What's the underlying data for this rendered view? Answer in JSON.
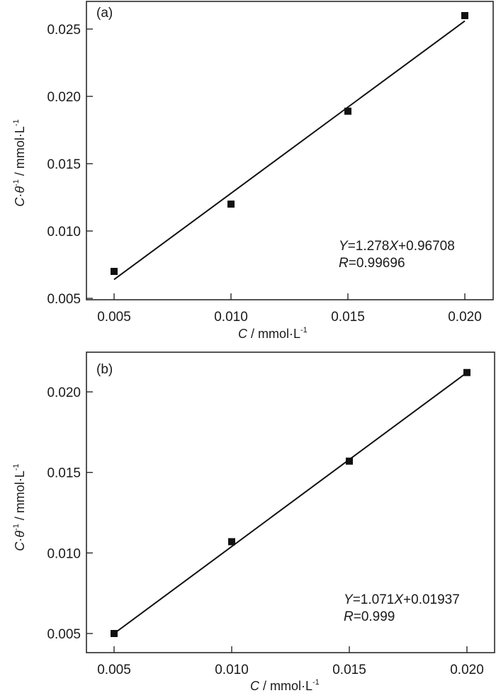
{
  "chart_data": [
    {
      "type": "scatter",
      "panel_label": "(a)",
      "title": "",
      "xlabel": "C / mmol·L⁻¹",
      "ylabel": "C·θ⁻¹ / mmol·L⁻¹",
      "x_ticks": [
        "0.005",
        "0.010",
        "0.015",
        "0.020"
      ],
      "y_ticks": [
        "0.005",
        "0.010",
        "0.015",
        "0.020",
        "0.025"
      ],
      "xlim": [
        0.0038,
        0.0212
      ],
      "ylim": [
        0.0049,
        0.0268
      ],
      "grid": false,
      "legend": null,
      "series": [
        {
          "name": "data",
          "marker": "square",
          "x": [
            0.005,
            0.01,
            0.015,
            0.02
          ],
          "y": [
            0.007,
            0.012,
            0.0189,
            0.026
          ]
        },
        {
          "name": "linear fit",
          "style": "line",
          "x": [
            0.005,
            0.02
          ],
          "y": [
            0.0064,
            0.0256
          ]
        }
      ],
      "annotations": {
        "equation": {
          "Y": "Y",
          "eq1": "=1.278",
          "X": "X",
          "eq2": "+0.96708"
        },
        "r": {
          "R": "R",
          "value": "=0.99696"
        }
      }
    },
    {
      "type": "scatter",
      "panel_label": "(b)",
      "title": "",
      "xlabel": "C / mmol·L⁻¹",
      "ylabel": "C·θ⁻¹ / mmol·L⁻¹",
      "x_ticks": [
        "0.005",
        "0.010",
        "0.015",
        "0.020"
      ],
      "y_ticks": [
        "0.005",
        "0.010",
        "0.015",
        "0.020"
      ],
      "xlim": [
        0.0038,
        0.0212
      ],
      "ylim": [
        0.0038,
        0.0225
      ],
      "grid": false,
      "legend": null,
      "series": [
        {
          "name": "data",
          "marker": "square",
          "x": [
            0.005,
            0.01,
            0.015,
            0.02
          ],
          "y": [
            0.005,
            0.0107,
            0.0157,
            0.0212
          ]
        },
        {
          "name": "linear fit",
          "style": "line",
          "x": [
            0.005,
            0.02
          ],
          "y": [
            0.005,
            0.0212
          ]
        }
      ],
      "annotations": {
        "equation": {
          "Y": "Y",
          "eq1": "=1.071",
          "X": "X",
          "eq2": "+0.01937"
        },
        "r": {
          "R": "R",
          "value": "=0.999"
        }
      }
    }
  ],
  "axis_text": {
    "xlabel_var": "C",
    "xlabel_unit": " / mmol·L",
    "ylabel_var1": "C",
    "ylabel_dot": "·",
    "ylabel_var2": "θ",
    "ylabel_unit": " / mmol·L",
    "sup": "-1"
  }
}
